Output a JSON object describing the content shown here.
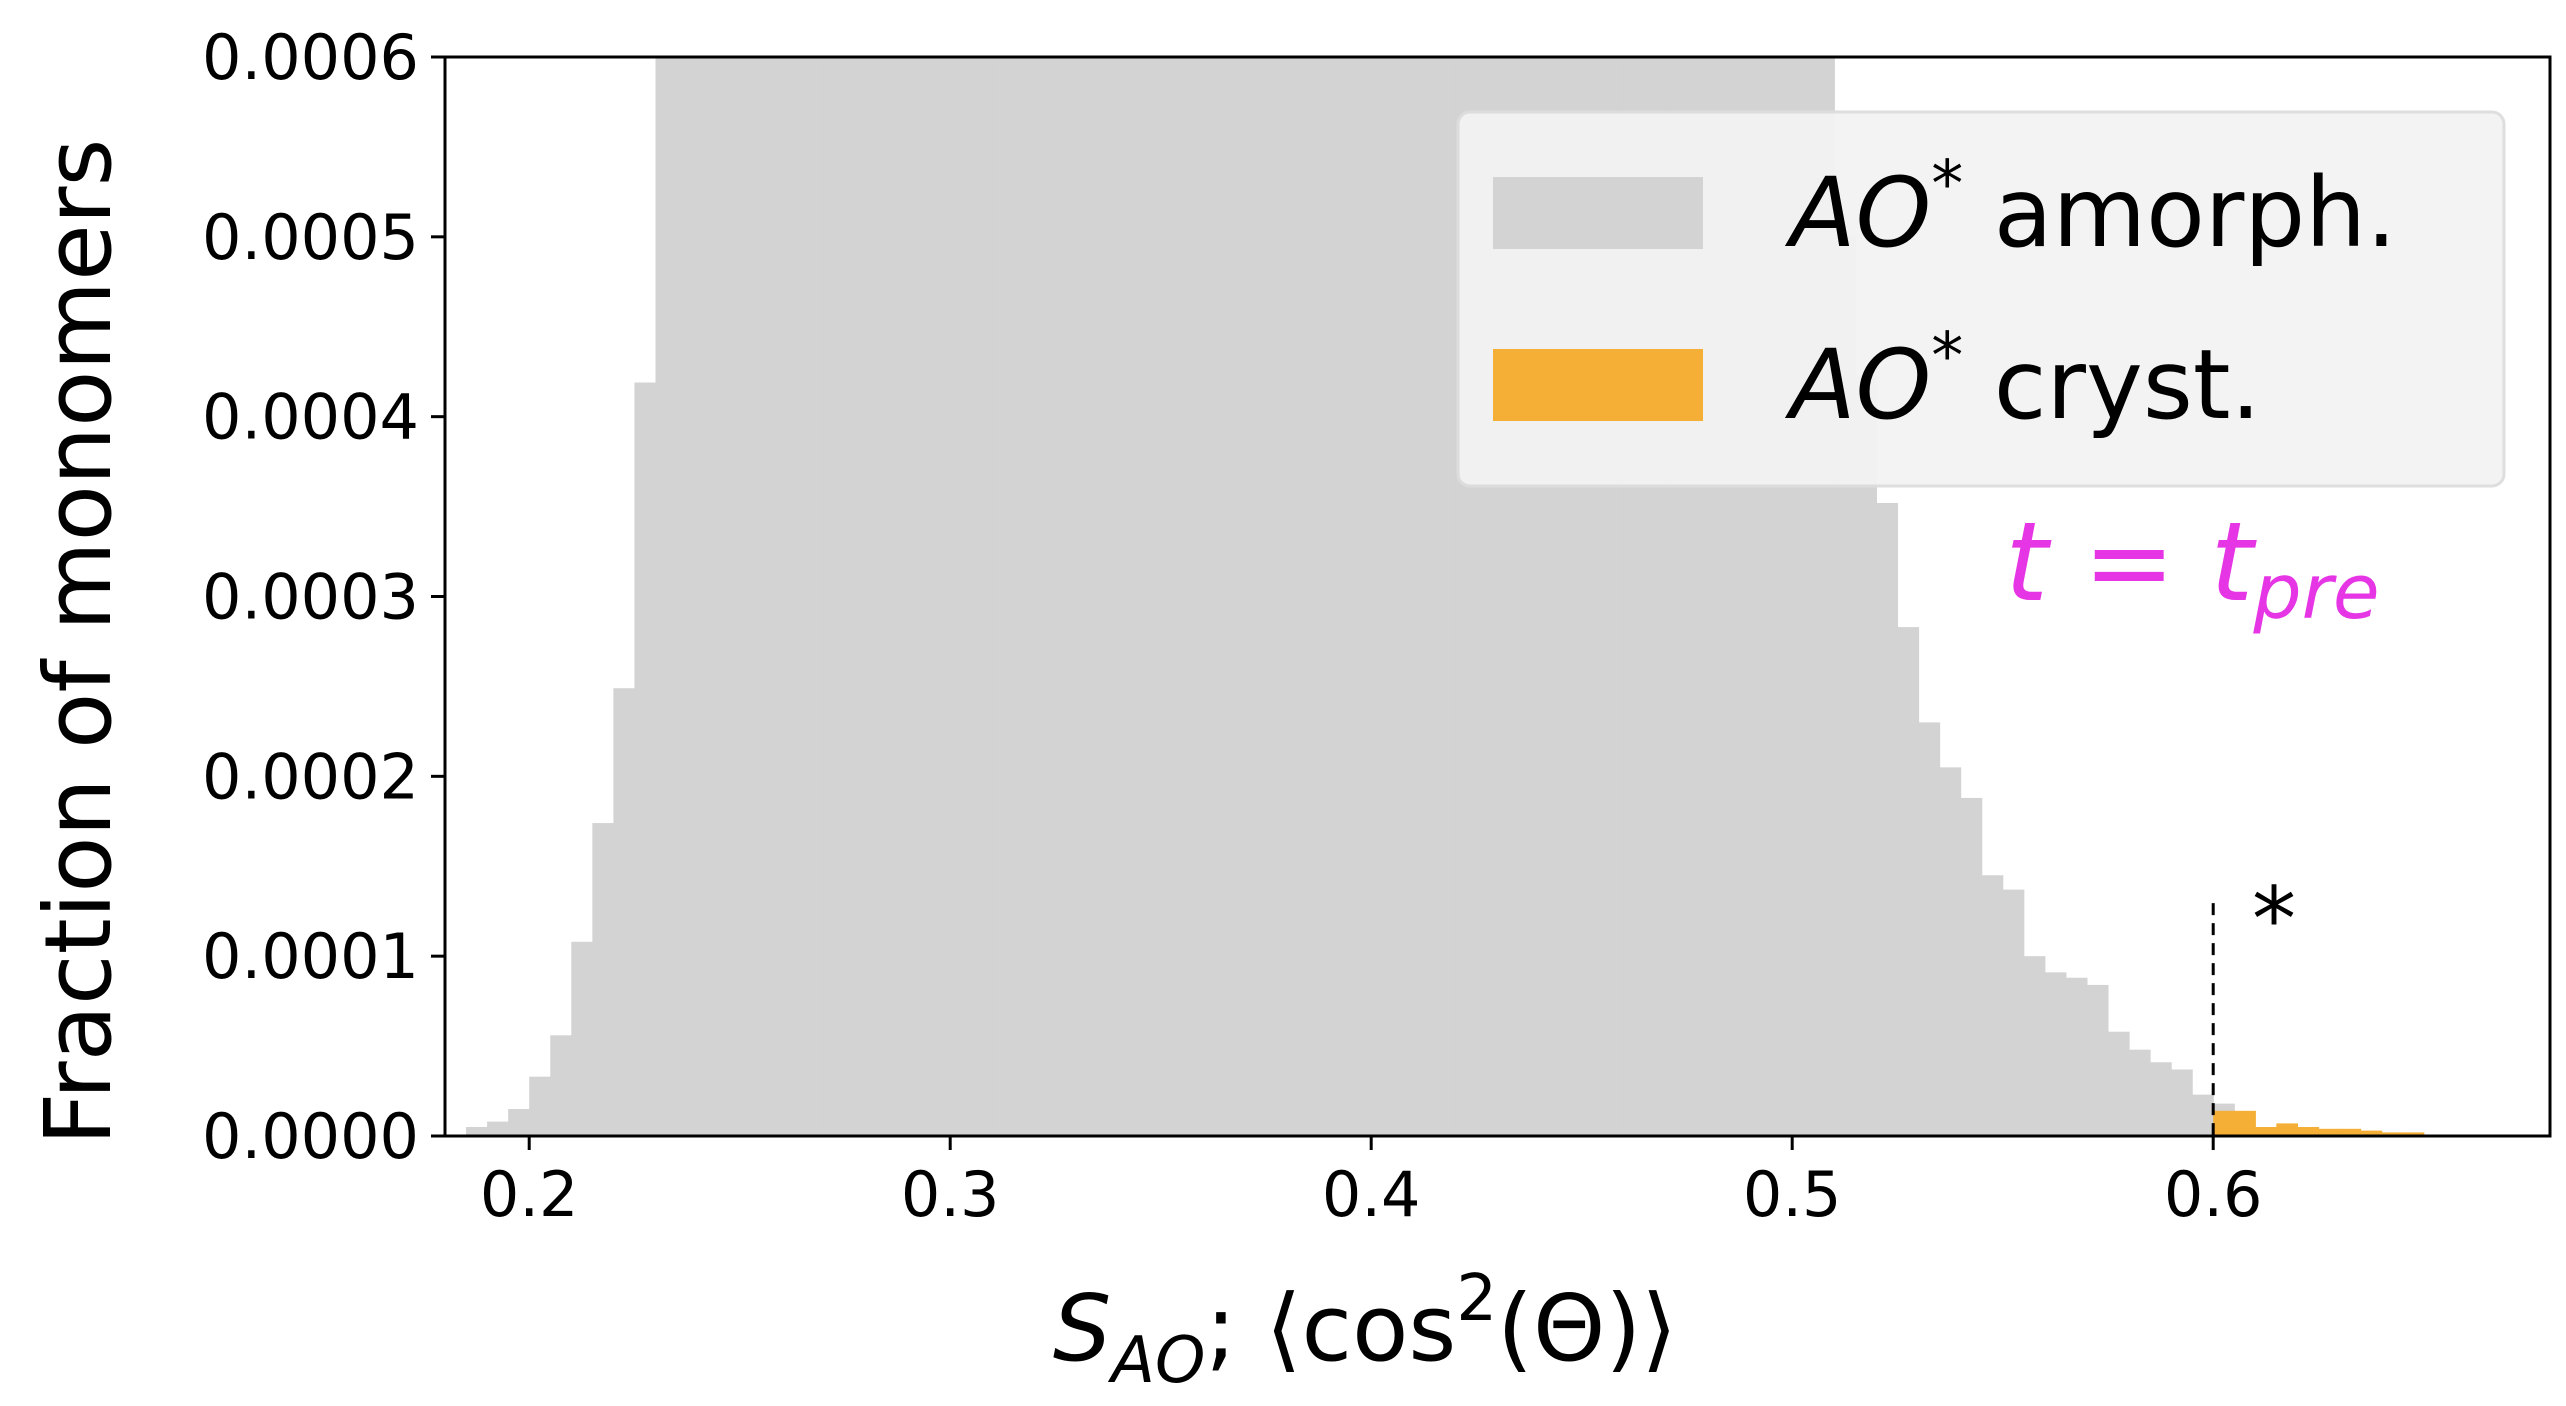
{
  "chart_data": {
    "type": "bar",
    "xlabel": "S_AO; ⟨cos²(Θ)⟩",
    "ylabel": "Fraction of monomers",
    "xlim": [
      0.18,
      0.68
    ],
    "ylim": [
      0,
      0.0006
    ],
    "x_ticks": [
      "0.2",
      "0.3",
      "0.4",
      "0.5",
      "0.6"
    ],
    "y_ticks": [
      "0.0000",
      "0.0001",
      "0.0002",
      "0.0003",
      "0.0004",
      "0.0005",
      "0.0006"
    ],
    "legend_position": "upper right",
    "grid": false,
    "colors": {
      "amorph": "#d3d3d3",
      "cryst": "#f5ae36",
      "annotation": "#e535e5"
    },
    "bin_width": 0.005,
    "series": [
      {
        "name": "AO* amorph.",
        "type": "histogram",
        "bin_start": 0.185,
        "values": [
          5e-06,
          8e-06,
          1.5e-05,
          3.3e-05,
          5.6e-05,
          0.000108,
          0.000174,
          0.000249,
          0.000419,
          0.0006,
          0.0006,
          0.0006,
          0.0006,
          0.0006,
          0.0006,
          0.0006,
          0.0006,
          0.0006,
          0.0006,
          0.0006,
          0.0006,
          0.0006,
          0.0006,
          0.0006,
          0.0006,
          0.0006,
          0.0006,
          0.0006,
          0.0006,
          0.0006,
          0.0006,
          0.0006,
          0.0006,
          0.0006,
          0.0006,
          0.0006,
          0.0006,
          0.0006,
          0.0006,
          0.0006,
          0.0006,
          0.0006,
          0.0006,
          0.0006,
          0.0006,
          0.0006,
          0.0006,
          0.0006,
          0.0006,
          0.0006,
          0.0006,
          0.0006,
          0.0006,
          0.0006,
          0.0006,
          0.0006,
          0.0006,
          0.0006,
          0.0006,
          0.0006,
          0.0006,
          0.0006,
          0.0006,
          0.0006,
          0.0006,
          0.0005,
          0.000423,
          0.000352,
          0.000283,
          0.00023,
          0.000205,
          0.000188,
          0.000145,
          0.000137,
          0.0001,
          9.1e-05,
          8.8e-05,
          8.4e-05,
          5.8e-05,
          4.8e-05,
          4.1e-05,
          3.7e-05,
          2.3e-05,
          1.8e-05,
          5e-06
        ]
      },
      {
        "name": "AO* cryst.",
        "type": "histogram",
        "bin_start": 0.6,
        "values": [
          1.4e-05,
          1.4e-05,
          5e-06,
          7e-06,
          5e-06,
          4e-06,
          4e-06,
          3e-06,
          2e-06,
          2e-06
        ]
      }
    ],
    "annotations": [
      {
        "text": "t = t_pre",
        "x": 0.635,
        "y": 0.00032
      },
      {
        "text": "*",
        "x": 0.616,
        "y": 0.000122
      },
      {
        "type": "vline",
        "style": "dashed",
        "x": 0.6,
        "y_range": [
          5e-07,
          0.000132
        ]
      }
    ]
  },
  "legend": {
    "amorph_prefix": "AO",
    "amorph_sup": "*",
    "amorph_suffix": " amorph.",
    "cryst_prefix": "AO",
    "cryst_sup": "*",
    "cryst_suffix": " cryst."
  },
  "labels": {
    "ylabel": "Fraction of monomers",
    "xlabel_S": "S",
    "xlabel_sub": "AO",
    "xlabel_mid": "; ⟨cos",
    "xlabel_sup": "2",
    "xlabel_end": "(Θ)⟩",
    "annot_t": "t",
    "annot_eq": " = ",
    "annot_t2": "t",
    "annot_sub": "pre",
    "star": "*"
  }
}
